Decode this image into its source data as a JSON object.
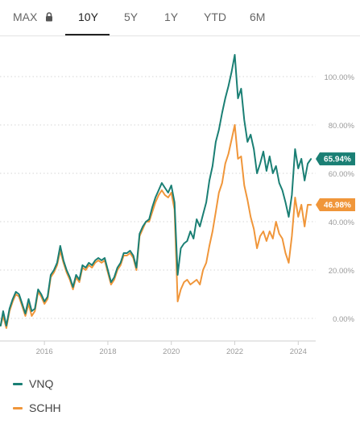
{
  "range_tabs": [
    {
      "id": "max",
      "label": "MAX",
      "locked": true,
      "active": false
    },
    {
      "id": "10y",
      "label": "10Y",
      "locked": false,
      "active": true
    },
    {
      "id": "5y",
      "label": "5Y",
      "locked": false,
      "active": false
    },
    {
      "id": "1y",
      "label": "1Y",
      "locked": false,
      "active": false
    },
    {
      "id": "ytd",
      "label": "YTD",
      "locked": false,
      "active": false
    },
    {
      "id": "6m",
      "label": "6M",
      "locked": false,
      "active": false
    }
  ],
  "icons": {
    "lock": "lock-icon"
  },
  "colors": {
    "VNQ": "#1a7f74",
    "SCHH": "#f0963a",
    "axis_text": "#9a9a9a",
    "grid": "#d6d6d6"
  },
  "chart_data": {
    "type": "line",
    "title": "",
    "xlabel": "",
    "ylabel": "",
    "x_ticks": [
      "2016",
      "2018",
      "2020",
      "2022",
      "2024"
    ],
    "y_ticks": [
      "0.00%",
      "20.00%",
      "40.00%",
      "60.00%",
      "80.00%",
      "100.00%"
    ],
    "ylim": [
      -7,
      110
    ],
    "xlim": [
      2014.6,
      2024.5
    ],
    "grid": "horizontal dotted",
    "legend_position": "bottom-left",
    "series": [
      {
        "name": "VNQ",
        "last_value_label": "65.94%",
        "points": [
          [
            2014.62,
            -3
          ],
          [
            2014.7,
            3
          ],
          [
            2014.8,
            -3
          ],
          [
            2014.9,
            4
          ],
          [
            2015.0,
            8
          ],
          [
            2015.1,
            11
          ],
          [
            2015.2,
            10
          ],
          [
            2015.3,
            6
          ],
          [
            2015.4,
            2
          ],
          [
            2015.5,
            8
          ],
          [
            2015.6,
            3
          ],
          [
            2015.7,
            4
          ],
          [
            2015.8,
            12
          ],
          [
            2015.9,
            10
          ],
          [
            2016.0,
            7
          ],
          [
            2016.1,
            9
          ],
          [
            2016.2,
            18
          ],
          [
            2016.3,
            20
          ],
          [
            2016.4,
            23
          ],
          [
            2016.5,
            30
          ],
          [
            2016.6,
            24
          ],
          [
            2016.7,
            20
          ],
          [
            2016.8,
            17
          ],
          [
            2016.9,
            13
          ],
          [
            2017.0,
            18
          ],
          [
            2017.1,
            16
          ],
          [
            2017.2,
            22
          ],
          [
            2017.3,
            21
          ],
          [
            2017.4,
            23
          ],
          [
            2017.5,
            22
          ],
          [
            2017.6,
            24
          ],
          [
            2017.7,
            25
          ],
          [
            2017.8,
            24
          ],
          [
            2017.9,
            25
          ],
          [
            2018.0,
            20
          ],
          [
            2018.1,
            15
          ],
          [
            2018.2,
            17
          ],
          [
            2018.3,
            21
          ],
          [
            2018.4,
            23
          ],
          [
            2018.5,
            27
          ],
          [
            2018.6,
            27
          ],
          [
            2018.7,
            28
          ],
          [
            2018.8,
            26
          ],
          [
            2018.9,
            21
          ],
          [
            2019.0,
            35
          ],
          [
            2019.1,
            38
          ],
          [
            2019.2,
            40
          ],
          [
            2019.3,
            41
          ],
          [
            2019.4,
            46
          ],
          [
            2019.5,
            50
          ],
          [
            2019.6,
            53
          ],
          [
            2019.7,
            56
          ],
          [
            2019.8,
            54
          ],
          [
            2019.9,
            52
          ],
          [
            2020.0,
            55
          ],
          [
            2020.1,
            48
          ],
          [
            2020.2,
            18
          ],
          [
            2020.3,
            29
          ],
          [
            2020.4,
            31
          ],
          [
            2020.5,
            32
          ],
          [
            2020.6,
            36
          ],
          [
            2020.7,
            33
          ],
          [
            2020.8,
            41
          ],
          [
            2020.9,
            38
          ],
          [
            2021.0,
            43
          ],
          [
            2021.1,
            48
          ],
          [
            2021.2,
            57
          ],
          [
            2021.3,
            63
          ],
          [
            2021.4,
            73
          ],
          [
            2021.5,
            78
          ],
          [
            2021.6,
            85
          ],
          [
            2021.7,
            91
          ],
          [
            2021.8,
            96
          ],
          [
            2021.9,
            102
          ],
          [
            2022.0,
            109
          ],
          [
            2022.1,
            91
          ],
          [
            2022.2,
            95
          ],
          [
            2022.3,
            82
          ],
          [
            2022.4,
            73
          ],
          [
            2022.5,
            76
          ],
          [
            2022.6,
            70
          ],
          [
            2022.7,
            60
          ],
          [
            2022.8,
            64
          ],
          [
            2022.9,
            69
          ],
          [
            2023.0,
            61
          ],
          [
            2023.1,
            67
          ],
          [
            2023.2,
            60
          ],
          [
            2023.3,
            63
          ],
          [
            2023.4,
            56
          ],
          [
            2023.5,
            53
          ],
          [
            2023.6,
            48
          ],
          [
            2023.7,
            42
          ],
          [
            2023.8,
            51
          ],
          [
            2023.9,
            70
          ],
          [
            2024.0,
            62
          ],
          [
            2024.1,
            66
          ],
          [
            2024.2,
            57
          ],
          [
            2024.3,
            64
          ],
          [
            2024.4,
            65.94
          ]
        ]
      },
      {
        "name": "SCHH",
        "last_value_label": "46.98%",
        "points": [
          [
            2014.62,
            -3
          ],
          [
            2014.7,
            1
          ],
          [
            2014.8,
            -4
          ],
          [
            2014.9,
            3
          ],
          [
            2015.0,
            7
          ],
          [
            2015.1,
            10
          ],
          [
            2015.2,
            9
          ],
          [
            2015.3,
            5
          ],
          [
            2015.4,
            1
          ],
          [
            2015.5,
            6
          ],
          [
            2015.6,
            1
          ],
          [
            2015.7,
            3
          ],
          [
            2015.8,
            11
          ],
          [
            2015.9,
            9
          ],
          [
            2016.0,
            6
          ],
          [
            2016.1,
            8
          ],
          [
            2016.2,
            17
          ],
          [
            2016.3,
            19
          ],
          [
            2016.4,
            22
          ],
          [
            2016.5,
            28
          ],
          [
            2016.6,
            23
          ],
          [
            2016.7,
            19
          ],
          [
            2016.8,
            16
          ],
          [
            2016.9,
            12
          ],
          [
            2017.0,
            17
          ],
          [
            2017.1,
            15
          ],
          [
            2017.2,
            21
          ],
          [
            2017.3,
            20
          ],
          [
            2017.4,
            22
          ],
          [
            2017.5,
            21
          ],
          [
            2017.6,
            23
          ],
          [
            2017.7,
            24
          ],
          [
            2017.8,
            23
          ],
          [
            2017.9,
            24
          ],
          [
            2018.0,
            19
          ],
          [
            2018.1,
            14
          ],
          [
            2018.2,
            16
          ],
          [
            2018.3,
            20
          ],
          [
            2018.4,
            22
          ],
          [
            2018.5,
            26
          ],
          [
            2018.6,
            26
          ],
          [
            2018.7,
            27
          ],
          [
            2018.8,
            25
          ],
          [
            2018.9,
            20
          ],
          [
            2019.0,
            34
          ],
          [
            2019.1,
            37
          ],
          [
            2019.2,
            40
          ],
          [
            2019.3,
            40
          ],
          [
            2019.4,
            44
          ],
          [
            2019.5,
            48
          ],
          [
            2019.6,
            51
          ],
          [
            2019.7,
            53
          ],
          [
            2019.8,
            51
          ],
          [
            2019.9,
            50
          ],
          [
            2020.0,
            52
          ],
          [
            2020.1,
            45
          ],
          [
            2020.2,
            7
          ],
          [
            2020.3,
            12
          ],
          [
            2020.4,
            15
          ],
          [
            2020.5,
            16
          ],
          [
            2020.6,
            14
          ],
          [
            2020.7,
            15
          ],
          [
            2020.8,
            16
          ],
          [
            2020.9,
            14
          ],
          [
            2021.0,
            20
          ],
          [
            2021.1,
            23
          ],
          [
            2021.2,
            30
          ],
          [
            2021.3,
            36
          ],
          [
            2021.4,
            44
          ],
          [
            2021.5,
            52
          ],
          [
            2021.6,
            56
          ],
          [
            2021.7,
            64
          ],
          [
            2021.8,
            68
          ],
          [
            2021.9,
            74
          ],
          [
            2022.0,
            80
          ],
          [
            2022.1,
            66
          ],
          [
            2022.2,
            67
          ],
          [
            2022.3,
            55
          ],
          [
            2022.4,
            49
          ],
          [
            2022.5,
            42
          ],
          [
            2022.6,
            37
          ],
          [
            2022.7,
            29
          ],
          [
            2022.8,
            34
          ],
          [
            2022.9,
            36
          ],
          [
            2023.0,
            32
          ],
          [
            2023.1,
            36
          ],
          [
            2023.2,
            33
          ],
          [
            2023.3,
            40
          ],
          [
            2023.4,
            35
          ],
          [
            2023.5,
            33
          ],
          [
            2023.6,
            27
          ],
          [
            2023.7,
            23
          ],
          [
            2023.8,
            34
          ],
          [
            2023.9,
            50
          ],
          [
            2024.0,
            42
          ],
          [
            2024.1,
            47
          ],
          [
            2024.2,
            38
          ],
          [
            2024.3,
            47
          ],
          [
            2024.4,
            46.98
          ]
        ]
      }
    ]
  }
}
